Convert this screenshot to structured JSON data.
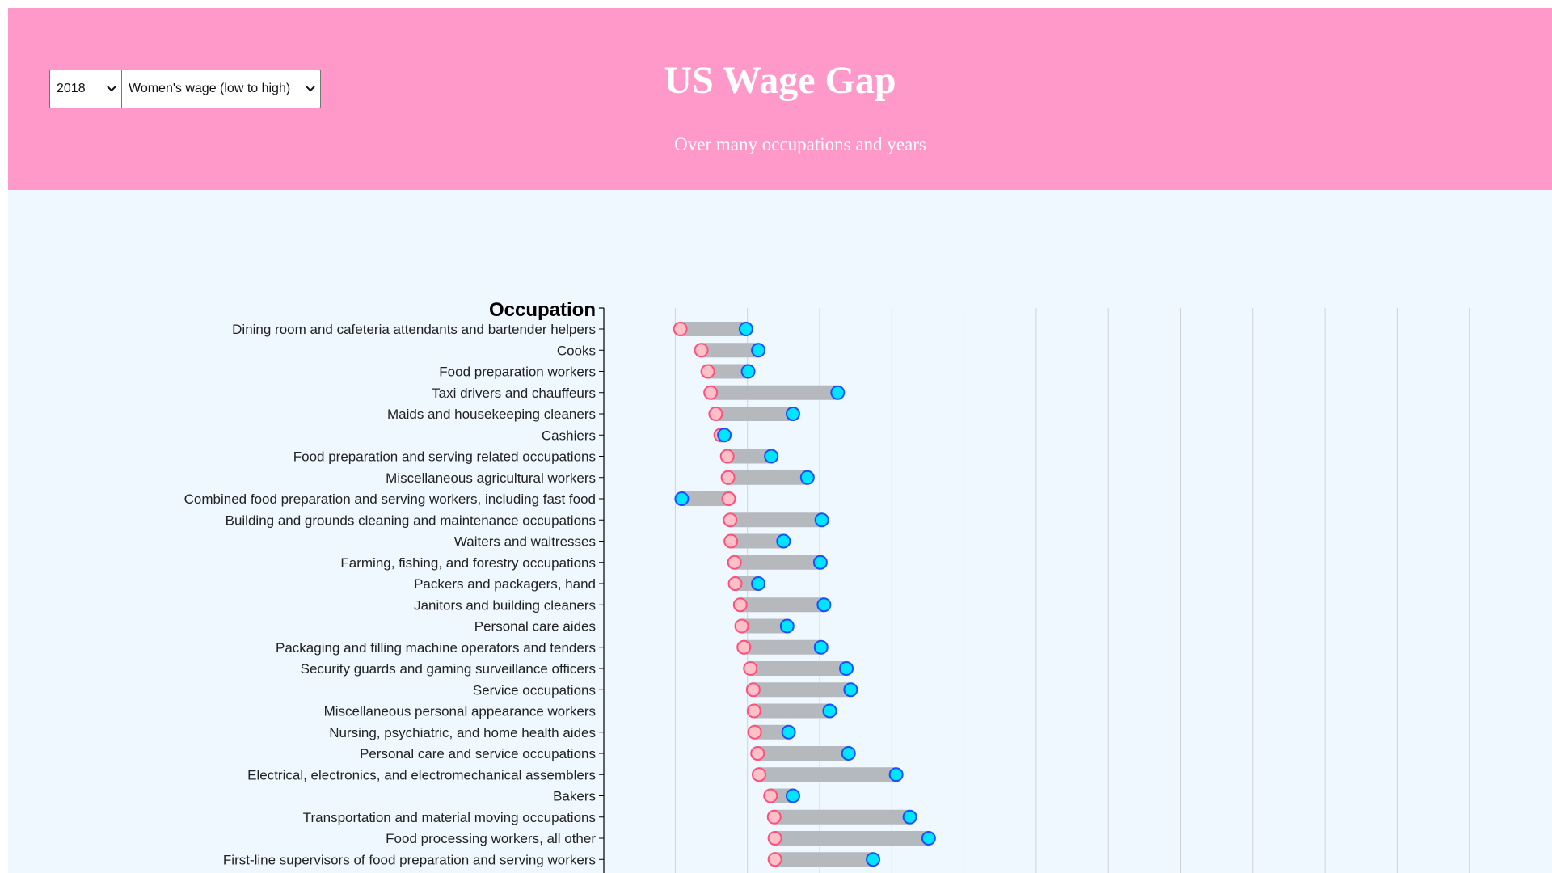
{
  "header": {
    "title": "US Wage Gap",
    "subtitle": "Over many occupations and years",
    "background": "#ff99c9"
  },
  "controls": {
    "year": {
      "selected": "2018"
    },
    "sort": {
      "selected": "Women's wage (low to high)"
    }
  },
  "colors": {
    "women": "#ff4f7a",
    "women_fill": "#ffc0c8",
    "men": "#1b4dff",
    "men_fill": "#00e5ff",
    "bar": "#b5b8bd",
    "grid": "#cfd3d8",
    "background": "#f0f8ff"
  },
  "chart_data": {
    "type": "dumbbell",
    "ylabel": "Occupation",
    "xlim": [
      0,
      12
    ],
    "grid": true,
    "series": [
      {
        "name": "",
        "key": "women"
      },
      {
        "name": "",
        "key": "men"
      }
    ],
    "categories": [
      "Dining room and cafeteria attendants and bartender helpers",
      "Cooks",
      "Food preparation workers",
      "Taxi drivers and chauffeurs",
      "Maids and housekeeping cleaners",
      "Cashiers",
      "Food preparation and serving related occupations",
      "Miscellaneous agricultural workers",
      "Combined food preparation and serving workers, including fast food",
      "Building and grounds cleaning and maintenance occupations",
      "Waiters and waitresses",
      "Farming, fishing, and forestry occupations",
      "Packers and packagers, hand",
      "Janitors and building cleaners",
      "Personal care aides",
      "Packaging and filling machine operators and tenders",
      "Security guards and gaming surveillance officers",
      "Service occupations",
      "Miscellaneous personal appearance workers",
      "Nursing, psychiatric, and home health aides",
      "Personal care and service occupations",
      "Electrical, electronics, and electromechanical assemblers",
      "Bakers",
      "Transportation and material moving occupations",
      "Food processing workers, all other",
      "First-line supervisors of food preparation and serving workers"
    ],
    "women": [
      1.07,
      1.36,
      1.45,
      1.49,
      1.56,
      1.63,
      1.72,
      1.73,
      1.74,
      1.76,
      1.77,
      1.82,
      1.83,
      1.9,
      1.92,
      1.95,
      2.04,
      2.08,
      2.09,
      2.1,
      2.14,
      2.16,
      2.32,
      2.37,
      2.38,
      2.38
    ],
    "men": [
      1.98,
      2.15,
      2.01,
      3.25,
      2.63,
      1.68,
      2.33,
      2.83,
      1.09,
      3.03,
      2.5,
      3.01,
      2.15,
      3.06,
      2.55,
      3.02,
      3.37,
      3.43,
      3.14,
      2.57,
      3.4,
      4.06,
      2.63,
      4.25,
      4.51,
      3.74
    ]
  }
}
